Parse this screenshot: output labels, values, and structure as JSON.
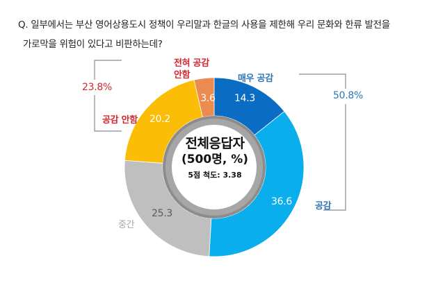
{
  "question": {
    "line1": "Q. 일부에서는 부산 영어상용도시 정책이 우리말과 한글의 사용을 제한해 우리 문화와 한류 발전을",
    "line2": "가로막을 위험이 있다고 비판하는데?"
  },
  "center": {
    "title": "전체응답자",
    "subtitle": "(500명, %)",
    "scale": "5점 척도: 3.38"
  },
  "groups": {
    "negative": {
      "total": "23.8%",
      "color": "#d3262e"
    },
    "positive": {
      "total": "50.8%",
      "color": "#2e75b6"
    }
  },
  "labels": {
    "strongly_agree": "매우 공감",
    "agree": "공감",
    "neutral": "중간",
    "disagree": "공감 안함",
    "strongly_disagree_1": "전혀 공감",
    "strongly_disagree_2": "안함"
  },
  "values_text": {
    "strongly_agree": "14.3",
    "agree": "36.6",
    "neutral": "25.3",
    "disagree": "20.2",
    "strongly_disagree": "3.6"
  },
  "chart_data": {
    "type": "pie",
    "subtype": "donut",
    "title": "Q. 일부에서는 부산 영어상용도시 정책이 우리말과 한글의 사용을 제한해 우리 문화와 한류 발전을 가로막을 위험이 있다고 비판하는데?",
    "center_label": "전체응답자 (500명, %) 5점 척도: 3.38",
    "unit": "%",
    "sample_size": 500,
    "scale_mean": 3.38,
    "categories": [
      "매우 공감",
      "공감",
      "중간",
      "공감 안함",
      "전혀 공감 안함"
    ],
    "values": [
      14.3,
      36.6,
      25.3,
      20.2,
      3.6
    ],
    "colors": [
      "#0b6cc4",
      "#0aaeec",
      "#bfbfbf",
      "#fbbd06",
      "#ec8b50"
    ],
    "start_angle_deg": 0,
    "direction": "clockwise",
    "groupings": [
      {
        "name": "공감",
        "members": [
          "매우 공감",
          "공감"
        ],
        "total": 50.8
      },
      {
        "name": "공감 안함",
        "members": [
          "공감 안함",
          "전혀 공감 안함"
        ],
        "total": 23.8
      }
    ]
  }
}
